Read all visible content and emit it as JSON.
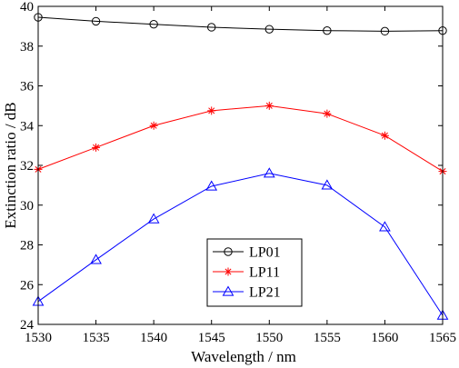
{
  "chart_data": {
    "type": "line",
    "title": "",
    "xlabel": "Wavelength / nm",
    "ylabel": "Extinction ratio / dB",
    "xlim": [
      1530,
      1565
    ],
    "ylim": [
      24,
      40
    ],
    "xticks": [
      1530,
      1535,
      1540,
      1545,
      1550,
      1555,
      1560,
      1565
    ],
    "yticks": [
      24,
      26,
      28,
      30,
      32,
      34,
      36,
      38,
      40
    ],
    "grid": false,
    "legend_position": "bottom-center",
    "x": [
      1530,
      1535,
      1540,
      1545,
      1550,
      1555,
      1560,
      1565
    ],
    "series": [
      {
        "name": "LP01",
        "color": "#000000",
        "marker": "circle",
        "values": [
          39.45,
          39.25,
          39.1,
          38.95,
          38.85,
          38.78,
          38.75,
          38.78
        ]
      },
      {
        "name": "LP11",
        "color": "#ff0000",
        "marker": "asterisk",
        "values": [
          31.8,
          32.9,
          34.0,
          34.75,
          35.0,
          34.6,
          33.5,
          31.7
        ]
      },
      {
        "name": "LP21",
        "color": "#0000ff",
        "marker": "triangle",
        "values": [
          25.15,
          27.25,
          29.3,
          30.95,
          31.6,
          31.0,
          28.9,
          24.45
        ]
      }
    ]
  }
}
